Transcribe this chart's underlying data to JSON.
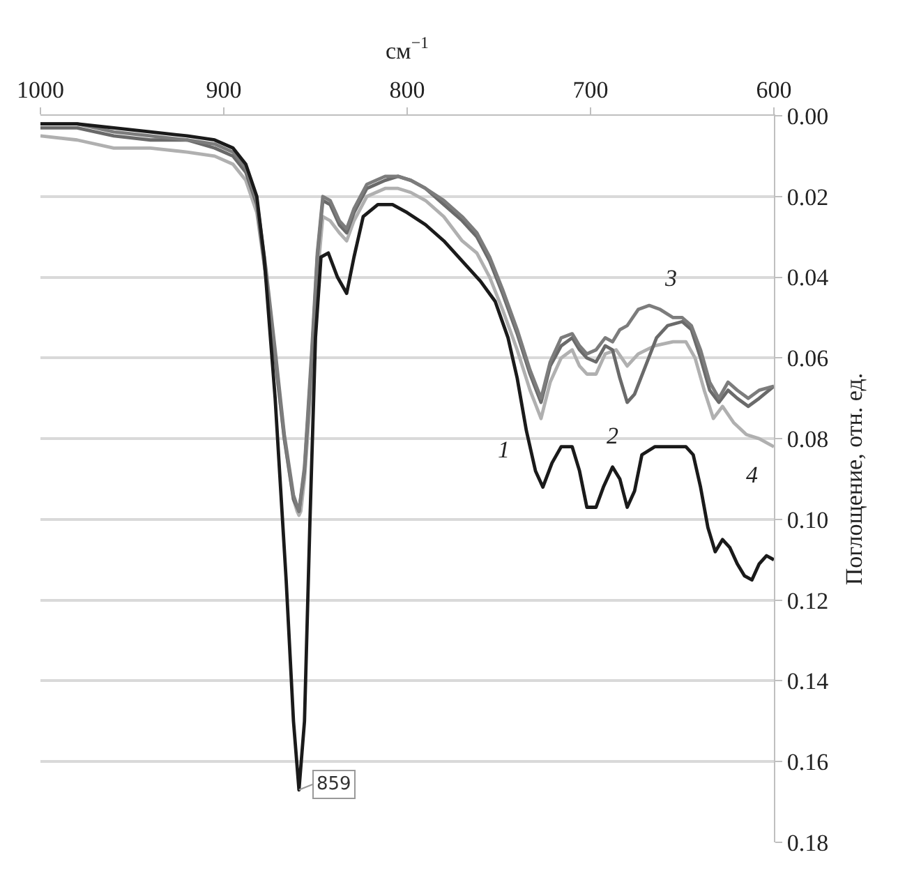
{
  "chart_data": {
    "type": "line",
    "xlabel": "см$^{−1}$",
    "ylabel": "Поглощение, отн. ед.",
    "xlim": [
      1000,
      600
    ],
    "xticks": [
      1000,
      900,
      800,
      700,
      600
    ],
    "ylim": [
      0.18,
      0
    ],
    "yticks": [
      {
        "value": 0,
        "label": "0.00"
      },
      {
        "value": 0.02,
        "label": "0.02"
      },
      {
        "value": 0.04,
        "label": "0.04"
      },
      {
        "value": 0.06,
        "label": "0.06"
      },
      {
        "value": 0.08,
        "label": "0.08"
      },
      {
        "value": 0.1,
        "label": "0.10"
      },
      {
        "value": 0.12,
        "label": "0.12"
      },
      {
        "value": 0.14,
        "label": "0.14"
      },
      {
        "value": 0.16,
        "label": "0.16"
      },
      {
        "value": 0.18,
        "label": "0.18"
      }
    ],
    "grid": "y",
    "legend": false,
    "marker": "none",
    "line_style": "solid",
    "series": [
      {
        "name": "4",
        "color": "#b0b0b0",
        "x": [
          1000,
          980,
          960,
          940,
          920,
          905,
          895,
          888,
          882,
          877,
          872,
          867,
          862,
          860,
          859,
          858,
          856,
          852,
          849,
          846,
          842,
          837,
          833,
          829,
          822,
          812,
          805,
          798,
          790,
          780,
          770,
          762,
          755,
          748,
          740,
          733,
          727,
          722,
          716,
          710,
          706,
          702,
          697,
          692,
          686,
          680,
          674,
          665,
          655,
          648,
          643,
          638,
          633,
          628,
          622,
          615,
          608,
          600
        ],
        "values": [
          0.005,
          0.006,
          0.008,
          0.008,
          0.009,
          0.01,
          0.012,
          0.016,
          0.024,
          0.04,
          0.06,
          0.08,
          0.095,
          0.098,
          0.099,
          0.098,
          0.09,
          0.065,
          0.04,
          0.025,
          0.026,
          0.029,
          0.031,
          0.026,
          0.02,
          0.018,
          0.018,
          0.019,
          0.021,
          0.025,
          0.031,
          0.034,
          0.04,
          0.048,
          0.058,
          0.068,
          0.075,
          0.066,
          0.06,
          0.058,
          0.062,
          0.064,
          0.064,
          0.059,
          0.058,
          0.062,
          0.059,
          0.057,
          0.056,
          0.056,
          0.06,
          0.068,
          0.075,
          0.072,
          0.076,
          0.079,
          0.08,
          0.082
        ]
      },
      {
        "name": "2",
        "color": "#6a6a6a",
        "x": [
          1000,
          980,
          960,
          940,
          920,
          905,
          895,
          888,
          882,
          877,
          872,
          867,
          862,
          859,
          856,
          852,
          849,
          846,
          842,
          837,
          833,
          829,
          822,
          812,
          805,
          798,
          790,
          780,
          770,
          762,
          755,
          748,
          740,
          733,
          727,
          722,
          716,
          710,
          706,
          702,
          697,
          692,
          688,
          684,
          680,
          676,
          670,
          664,
          658,
          650,
          645,
          640,
          635,
          630,
          625,
          620,
          614,
          608,
          600
        ],
        "values": [
          0.003,
          0.003,
          0.005,
          0.006,
          0.006,
          0.008,
          0.01,
          0.014,
          0.022,
          0.04,
          0.06,
          0.08,
          0.095,
          0.098,
          0.088,
          0.06,
          0.035,
          0.021,
          0.022,
          0.027,
          0.029,
          0.024,
          0.018,
          0.016,
          0.015,
          0.016,
          0.018,
          0.022,
          0.026,
          0.03,
          0.036,
          0.044,
          0.054,
          0.064,
          0.071,
          0.062,
          0.057,
          0.055,
          0.058,
          0.06,
          0.061,
          0.057,
          0.058,
          0.065,
          0.071,
          0.069,
          0.062,
          0.055,
          0.052,
          0.051,
          0.053,
          0.06,
          0.068,
          0.071,
          0.068,
          0.07,
          0.072,
          0.07,
          0.067
        ]
      },
      {
        "name": "3",
        "color": "#7c7c7c",
        "x": [
          1000,
          980,
          960,
          940,
          920,
          905,
          895,
          888,
          882,
          877,
          872,
          867,
          862,
          859,
          856,
          852,
          849,
          846,
          842,
          837,
          833,
          829,
          822,
          812,
          805,
          798,
          790,
          780,
          770,
          762,
          755,
          748,
          740,
          733,
          727,
          722,
          716,
          710,
          706,
          702,
          697,
          692,
          688,
          684,
          680,
          674,
          668,
          662,
          655,
          650,
          645,
          640,
          635,
          630,
          625,
          620,
          614,
          608,
          600
        ],
        "values": [
          0.002,
          0.002,
          0.004,
          0.005,
          0.006,
          0.007,
          0.009,
          0.013,
          0.021,
          0.038,
          0.058,
          0.079,
          0.094,
          0.098,
          0.087,
          0.058,
          0.034,
          0.02,
          0.021,
          0.026,
          0.028,
          0.023,
          0.017,
          0.015,
          0.015,
          0.016,
          0.018,
          0.021,
          0.025,
          0.029,
          0.035,
          0.043,
          0.053,
          0.063,
          0.07,
          0.061,
          0.055,
          0.054,
          0.057,
          0.059,
          0.058,
          0.055,
          0.056,
          0.053,
          0.052,
          0.048,
          0.047,
          0.048,
          0.05,
          0.05,
          0.052,
          0.058,
          0.066,
          0.07,
          0.066,
          0.068,
          0.07,
          0.068,
          0.067
        ]
      },
      {
        "name": "1",
        "color": "#1a1a1a",
        "x": [
          1000,
          980,
          960,
          940,
          920,
          905,
          895,
          888,
          882,
          878,
          872,
          866,
          862,
          859,
          856,
          853,
          850,
          847,
          843,
          838,
          833,
          829,
          824,
          816,
          808,
          800,
          790,
          780,
          770,
          760,
          752,
          745,
          740,
          735,
          730,
          726,
          721,
          716,
          710,
          706,
          702,
          697,
          693,
          688,
          684,
          680,
          676,
          672,
          665,
          655,
          648,
          644,
          640,
          636,
          632,
          628,
          624,
          620,
          616,
          612,
          608,
          604,
          600
        ],
        "values": [
          0.002,
          0.002,
          0.003,
          0.004,
          0.005,
          0.006,
          0.008,
          0.012,
          0.02,
          0.035,
          0.07,
          0.115,
          0.15,
          0.167,
          0.15,
          0.1,
          0.055,
          0.035,
          0.034,
          0.04,
          0.044,
          0.035,
          0.025,
          0.022,
          0.022,
          0.024,
          0.027,
          0.031,
          0.036,
          0.041,
          0.046,
          0.055,
          0.065,
          0.078,
          0.088,
          0.092,
          0.086,
          0.082,
          0.082,
          0.088,
          0.097,
          0.097,
          0.092,
          0.087,
          0.09,
          0.097,
          0.093,
          0.084,
          0.082,
          0.082,
          0.082,
          0.084,
          0.092,
          0.102,
          0.108,
          0.105,
          0.107,
          0.111,
          0.114,
          0.115,
          0.111,
          0.109,
          0.11
        ]
      }
    ],
    "annotations": [
      {
        "text": "859",
        "x": 859,
        "y": 0.167
      }
    ]
  }
}
